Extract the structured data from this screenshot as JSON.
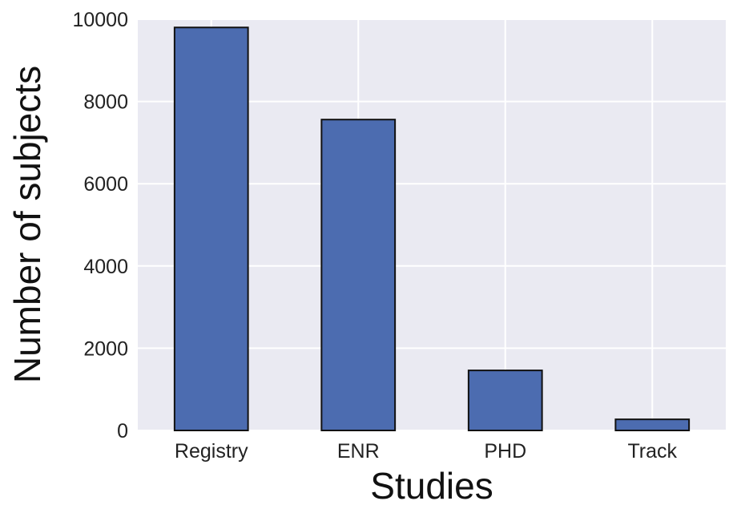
{
  "chart_data": {
    "type": "bar",
    "categories": [
      "Registry",
      "ENR",
      "PHD",
      "Track"
    ],
    "values": [
      9800,
      7560,
      1460,
      270
    ],
    "xlabel": "Studies",
    "ylabel": "Number of subjects",
    "ylim": [
      0,
      10000
    ],
    "yticks": [
      0,
      2000,
      4000,
      6000,
      8000,
      10000
    ],
    "ytick_labels": [
      "0",
      "2000",
      "4000",
      "6000",
      "8000",
      "10000"
    ],
    "grid": true,
    "colors": {
      "bar": "#4c6cb0",
      "bar_edge": "#111111",
      "plot_background": "#eaeaf2",
      "grid": "#ffffff"
    }
  }
}
